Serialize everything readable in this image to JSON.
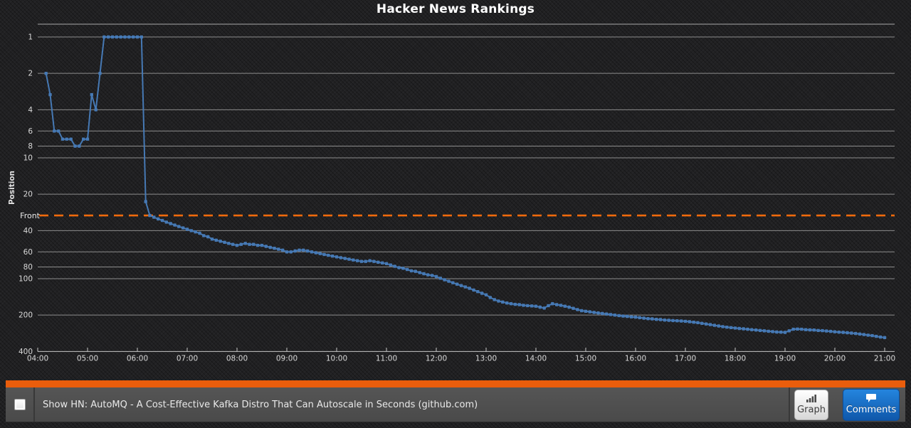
{
  "title": "Hacker News Rankings",
  "chart_data": {
    "type": "line",
    "title": "Hacker News Rankings",
    "xlabel": "",
    "ylabel": "Position",
    "y_scale": "log",
    "y_inverted": true,
    "grid": true,
    "y_ticks": [
      1,
      2,
      4,
      6,
      8,
      10,
      20,
      40,
      60,
      80,
      100,
      200,
      400
    ],
    "x_ticks": [
      "04:00",
      "05:00",
      "06:00",
      "07:00",
      "08:00",
      "09:00",
      "10:00",
      "11:00",
      "12:00",
      "13:00",
      "14:00",
      "15:00",
      "16:00",
      "17:00",
      "18:00",
      "19:00",
      "20:00",
      "21:00"
    ],
    "front_line": {
      "label": "Front",
      "value": 30,
      "color": "#f06a0c",
      "style": "dashed"
    },
    "series": [
      {
        "name": "Show HN: AutoMQ - A Cost-Effective Kafka Distro That Can Autoscale in Seconds",
        "color": "#4679b4",
        "x_start": "04:10",
        "x_step_minutes": 5,
        "values": [
          2,
          3,
          6,
          6,
          7,
          7,
          7,
          8,
          8,
          7,
          7,
          3,
          4,
          2,
          1,
          1,
          1,
          1,
          1,
          1,
          1,
          1,
          1,
          1,
          23,
          30,
          31,
          32,
          33,
          34,
          35,
          36,
          37,
          38,
          39,
          40,
          41,
          42,
          44,
          45,
          47,
          48,
          49,
          50,
          51,
          52,
          53,
          52,
          51,
          52,
          52,
          53,
          53,
          54,
          55,
          56,
          57,
          58,
          60,
          60,
          59,
          58,
          58,
          59,
          60,
          61,
          62,
          63,
          64,
          65,
          66,
          67,
          68,
          69,
          70,
          71,
          72,
          72,
          71,
          72,
          73,
          74,
          75,
          77,
          79,
          81,
          82,
          84,
          86,
          87,
          89,
          91,
          93,
          94,
          96,
          99,
          102,
          105,
          108,
          111,
          114,
          117,
          120,
          124,
          128,
          132,
          136,
          143,
          149,
          153,
          156,
          159,
          161,
          163,
          164,
          166,
          167,
          168,
          169,
          172,
          175,
          167,
          161,
          164,
          166,
          169,
          172,
          176,
          180,
          184,
          186,
          188,
          190,
          192,
          194,
          196,
          198,
          200,
          202,
          204,
          205,
          207,
          208,
          210,
          212,
          214,
          215,
          217,
          218,
          220,
          221,
          222,
          223,
          224,
          225,
          227,
          229,
          231,
          234,
          237,
          240,
          243,
          246,
          249,
          252,
          254,
          256,
          258,
          260,
          262,
          264,
          266,
          268,
          270,
          272,
          274,
          276,
          277,
          278,
          270,
          262,
          261,
          262,
          264,
          265,
          266,
          268,
          269,
          271,
          273,
          275,
          277,
          278,
          280,
          282,
          284,
          287,
          290,
          293,
          296,
          300,
          304,
          307
        ]
      }
    ]
  },
  "story_bar": {
    "accent_color": "#e95d0c",
    "checkbox_checked": false,
    "title": "Show HN: AutoMQ - A Cost-Effective Kafka Distro That Can Autoscale in Seconds (github.com)",
    "buttons": {
      "graph": "Graph",
      "comments": "Comments"
    }
  }
}
